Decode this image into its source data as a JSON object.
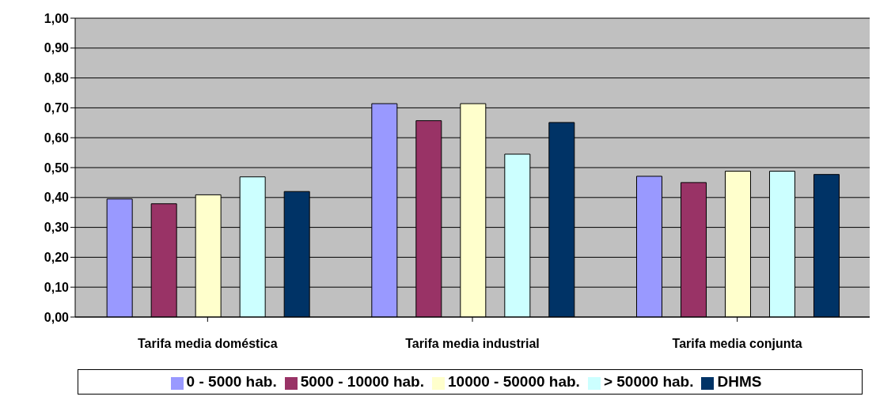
{
  "chart_data": {
    "type": "bar",
    "categories": [
      "Tarifa media doméstica",
      "Tarifa media industrial",
      "Tarifa media conjunta"
    ],
    "series": [
      {
        "name": "0 - 5000 hab.",
        "color": "#9999ff",
        "values": [
          0.395,
          0.714,
          0.471
        ]
      },
      {
        "name": "5000 - 10000 hab.",
        "color": "#993366",
        "values": [
          0.379,
          0.657,
          0.45
        ]
      },
      {
        "name": "10000 - 50000 hab.",
        "color": "#ffffcc",
        "values": [
          0.409,
          0.714,
          0.488
        ]
      },
      {
        "name": "> 50000 hab.",
        "color": "#ccffff",
        "values": [
          0.469,
          0.545,
          0.488
        ]
      },
      {
        "name": "DHMS",
        "color": "#003366",
        "values": [
          0.42,
          0.651,
          0.477
        ]
      }
    ],
    "ylim": [
      0,
      1
    ],
    "yticks": [
      {
        "value": 0,
        "label": "0,00"
      },
      {
        "value": 0.1,
        "label": "0,10"
      },
      {
        "value": 0.2,
        "label": "0,20"
      },
      {
        "value": 0.3,
        "label": "0,30"
      },
      {
        "value": 0.4,
        "label": "0,40"
      },
      {
        "value": 0.5,
        "label": "0,50"
      },
      {
        "value": 0.6,
        "label": "0,60"
      },
      {
        "value": 0.7,
        "label": "0,70"
      },
      {
        "value": 0.8,
        "label": "0,80"
      },
      {
        "value": 0.9,
        "label": "0,90"
      },
      {
        "value": 1,
        "label": "1,00"
      }
    ],
    "grid": "y",
    "legend": "bottom"
  }
}
